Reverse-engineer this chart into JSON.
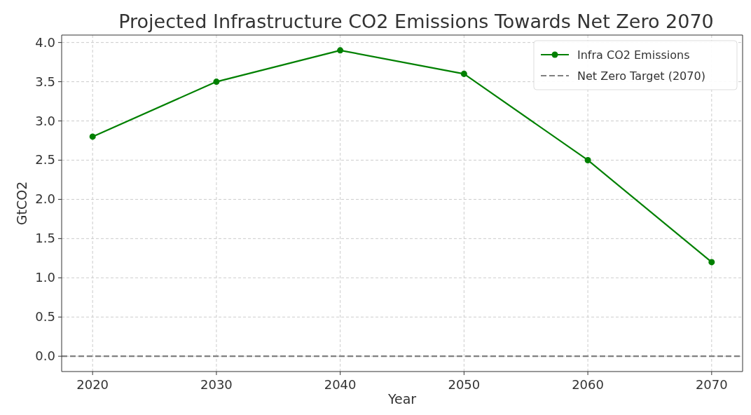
{
  "chart_data": {
    "type": "line",
    "title": "Projected Infrastructure CO2 Emissions Towards Net Zero 2070",
    "xlabel": "Year",
    "ylabel": "GtCO2",
    "x": [
      2020,
      2030,
      2040,
      2050,
      2060,
      2070
    ],
    "series": [
      {
        "name": "Infra CO2 Emissions",
        "color": "#008000",
        "values": [
          2.8,
          3.5,
          3.9,
          3.6,
          2.5,
          1.2
        ]
      }
    ],
    "xlim": [
      2017.5,
      2072.5
    ],
    "xticks": [
      2020,
      2030,
      2040,
      2050,
      2060,
      2070
    ],
    "ylim": [
      -0.195,
      4.095
    ],
    "yticks": [
      {
        "value": 0,
        "label": "0.0"
      },
      {
        "value": 0.5,
        "label": "0.5"
      },
      {
        "value": 1,
        "label": "1.0"
      },
      {
        "value": 1.5,
        "label": "1.5"
      },
      {
        "value": 2,
        "label": "2.0"
      },
      {
        "value": 2.5,
        "label": "2.5"
      },
      {
        "value": 3,
        "label": "3.0"
      },
      {
        "value": 3.5,
        "label": "3.5"
      },
      {
        "value": 4,
        "label": "4.0"
      }
    ],
    "ref_lines": [
      {
        "axis": "y",
        "value": 0,
        "label": "Net Zero Target (2070)",
        "color": "#808080",
        "line_style": "dashed"
      }
    ],
    "grid": true,
    "legend": "top right",
    "marker": "circle",
    "line_style": "solid"
  }
}
